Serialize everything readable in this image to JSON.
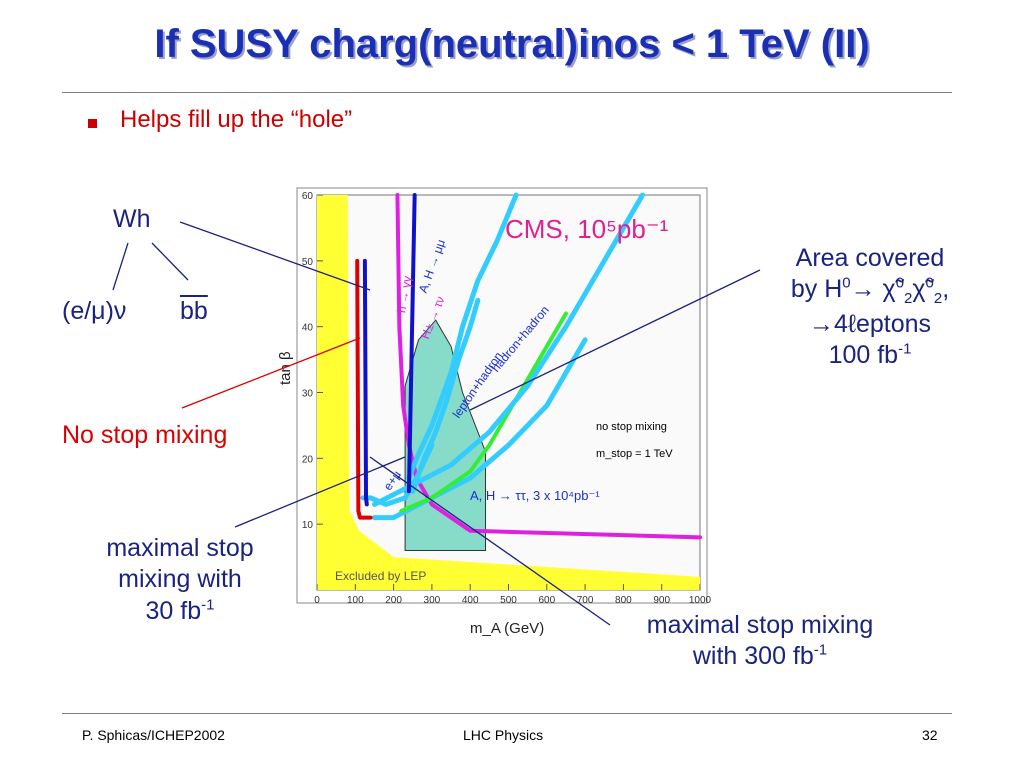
{
  "slide": {
    "title": "If SUSY charg(neutral)inos < 1 TeV (II)",
    "bullet": "Helps fill up the “hole”",
    "footer_left": "P. Sphicas/ICHEP2002",
    "footer_center": "LHC Physics",
    "footer_right": "32",
    "accent_color": "#1a2fb4",
    "bullet_color": "#cc0000"
  },
  "annotations": {
    "wh": "Wh",
    "enu": "(e/μ)ν",
    "bb": "bb",
    "no_stop": "No stop mixing",
    "max30_l1": "maximal stop",
    "max30_l2": "mixing with",
    "max30_l3": "30 fb",
    "max30_exp": "-1",
    "max300_l1": "maximal stop mixing",
    "max300_l2": "with 300 fb",
    "max300_exp": "-1",
    "area_l1": "Area covered",
    "area_l2_a": "by H",
    "area_l2_sup0": "0",
    "area_l2_b": "→ χ̃",
    "area_l2_c": "χ̃",
    "area_l2_sub": "2",
    "area_l2_d": ",",
    "area_l3": "→4ℓeptons",
    "area_l4": "100 fb",
    "area_exp": "-1"
  },
  "chart_data": {
    "type": "line",
    "xlabel": "m_A (GeV)",
    "ylabel": "tan β",
    "xlim": [
      0,
      1000
    ],
    "ylim": [
      0,
      60
    ],
    "x_ticks": [
      0,
      100,
      200,
      300,
      400,
      500,
      600,
      700,
      800,
      900,
      1000
    ],
    "y_ticks": [
      10,
      20,
      30,
      40,
      50,
      60
    ],
    "grid": false,
    "header": "CMS, 10⁵pb⁻¹",
    "legend_lines": [
      "no stop mixing",
      "m_stop = 1 TeV"
    ],
    "region_labels": {
      "lep": "Excluded by LEP",
      "att": "A, H → ττ, 3 x 10⁴pb⁻¹"
    },
    "series": [
      {
        "name": "h → γγ",
        "color": "#e020e0",
        "points": [
          [
            210,
            60
          ],
          [
            215,
            40
          ],
          [
            225,
            28
          ],
          [
            240,
            22
          ],
          [
            260,
            17
          ],
          [
            300,
            13
          ],
          [
            350,
            11
          ],
          [
            400,
            9
          ],
          [
            1000,
            8
          ]
        ]
      },
      {
        "name": "A, H → μμ",
        "color": "#33ccff",
        "points": [
          [
            240,
            17
          ],
          [
            260,
            20
          ],
          [
            300,
            25
          ],
          [
            350,
            33
          ],
          [
            380,
            40
          ],
          [
            420,
            47
          ],
          [
            470,
            53
          ],
          [
            520,
            60
          ]
        ]
      },
      {
        "name": "H± → τν",
        "color": "#33ccff",
        "points": [
          [
            250,
            15
          ],
          [
            280,
            20
          ],
          [
            310,
            24
          ],
          [
            340,
            29
          ],
          [
            370,
            35
          ],
          [
            400,
            40
          ],
          [
            420,
            44
          ]
        ]
      },
      {
        "name": "lepton+hadron",
        "color": "#33ccff",
        "points": [
          [
            150,
            11
          ],
          [
            200,
            11
          ],
          [
            300,
            14
          ],
          [
            400,
            17
          ],
          [
            500,
            22
          ],
          [
            600,
            28
          ],
          [
            650,
            33
          ],
          [
            700,
            38
          ]
        ]
      },
      {
        "name": "lepton+hadron",
        "color": "#33ee33",
        "points": [
          [
            220,
            12
          ],
          [
            300,
            14
          ],
          [
            400,
            18
          ],
          [
            450,
            22
          ],
          [
            500,
            27
          ],
          [
            550,
            32
          ],
          [
            600,
            37
          ],
          [
            650,
            42
          ]
        ]
      },
      {
        "name": "hadron+hadron",
        "color": "#33ccff",
        "points": [
          [
            150,
            13
          ],
          [
            250,
            16
          ],
          [
            350,
            19
          ],
          [
            450,
            24
          ],
          [
            550,
            31
          ],
          [
            650,
            40
          ],
          [
            750,
            50
          ],
          [
            850,
            60
          ]
        ]
      },
      {
        "name": "e+μ",
        "color": "#33ccff",
        "points": [
          [
            120,
            14
          ],
          [
            140,
            14
          ],
          [
            180,
            13
          ],
          [
            230,
            14
          ],
          [
            260,
            17
          ],
          [
            300,
            22
          ]
        ]
      },
      {
        "name": "Wh",
        "color": "#dd0000",
        "points": [
          [
            105,
            50
          ],
          [
            108,
            12
          ],
          [
            112,
            11
          ],
          [
            120,
            11
          ],
          [
            140,
            11
          ]
        ]
      },
      {
        "name": "maximal stop mixing, 300 fb⁻¹",
        "color": "#1111cc",
        "points": [
          [
            125,
            50
          ],
          [
            128,
            14
          ],
          [
            130,
            13
          ]
        ]
      },
      {
        "name": "maximal stop mixing, 30 fb⁻¹",
        "color": "#1111cc",
        "points": [
          [
            240,
            15
          ],
          [
            255,
            60
          ]
        ]
      }
    ],
    "area": {
      "name": "H⁰ → χ̃⁰₂χ̃⁰₂ → 4 leptons, 100 fb⁻¹",
      "points": [
        [
          230,
          31
        ],
        [
          265,
          38
        ],
        [
          310,
          41
        ],
        [
          350,
          37
        ],
        [
          380,
          30
        ],
        [
          440,
          21
        ],
        [
          440,
          6
        ],
        [
          230,
          6
        ]
      ]
    },
    "excluded_region": {
      "name": "Excluded by LEP",
      "color": "#ffff33"
    }
  }
}
